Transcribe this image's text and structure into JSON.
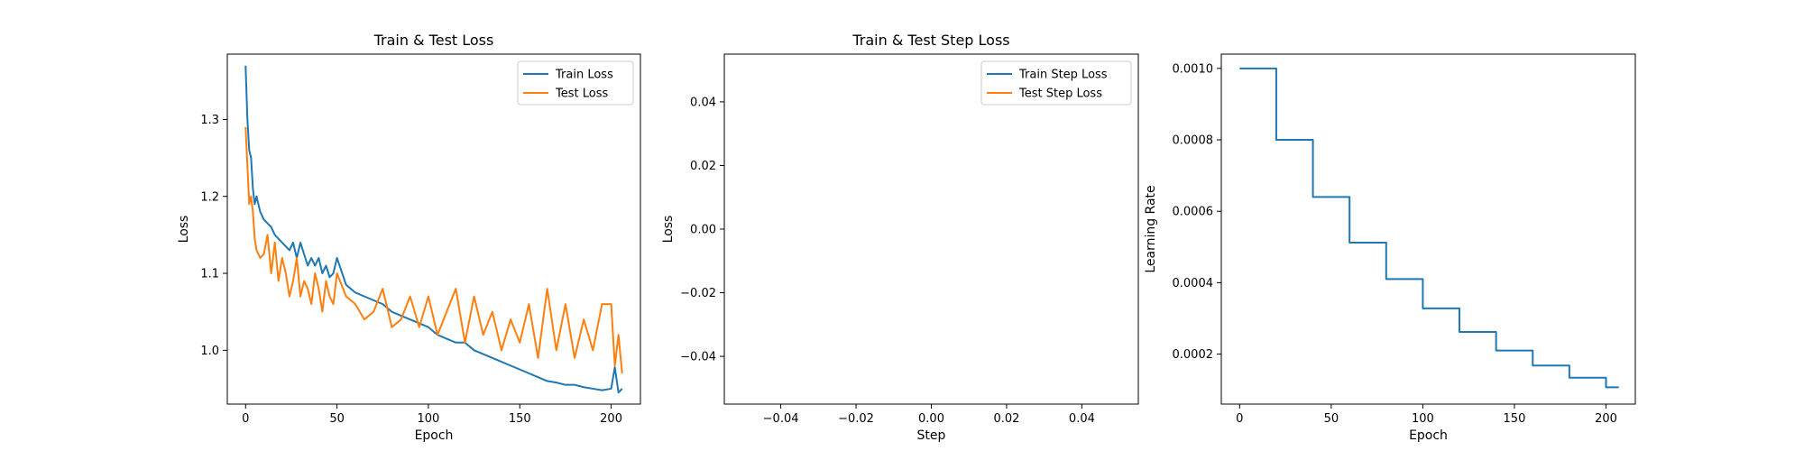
{
  "chart_data": [
    {
      "type": "line",
      "title": "Train & Test Loss",
      "xlabel": "Epoch",
      "ylabel": "Loss",
      "xlim": [
        -10,
        216
      ],
      "ylim": [
        0.93,
        1.385
      ],
      "xticks": [
        0,
        50,
        100,
        150,
        200
      ],
      "yticks": [
        1.0,
        1.1,
        1.2,
        1.3
      ],
      "ytick_labels": [
        "1.0",
        "1.1",
        "1.2",
        "1.3"
      ],
      "legend_position": "top-right",
      "series": [
        {
          "name": "Train Loss",
          "color": "#1f77b4",
          "x": [
            0,
            1,
            2,
            3,
            4,
            5,
            6,
            8,
            10,
            12,
            14,
            16,
            18,
            20,
            22,
            24,
            26,
            28,
            30,
            32,
            34,
            36,
            38,
            40,
            42,
            44,
            46,
            48,
            50,
            55,
            60,
            65,
            70,
            75,
            80,
            85,
            90,
            95,
            100,
            105,
            110,
            115,
            120,
            125,
            130,
            135,
            140,
            145,
            150,
            155,
            160,
            165,
            170,
            175,
            180,
            185,
            190,
            195,
            200,
            202,
            204,
            206
          ],
          "values": [
            1.37,
            1.3,
            1.26,
            1.25,
            1.21,
            1.19,
            1.2,
            1.18,
            1.17,
            1.165,
            1.16,
            1.15,
            1.145,
            1.14,
            1.135,
            1.13,
            1.14,
            1.12,
            1.14,
            1.125,
            1.11,
            1.12,
            1.11,
            1.12,
            1.1,
            1.11,
            1.095,
            1.1,
            1.12,
            1.085,
            1.075,
            1.07,
            1.065,
            1.06,
            1.05,
            1.045,
            1.04,
            1.035,
            1.03,
            1.02,
            1.015,
            1.01,
            1.01,
            1.0,
            0.995,
            0.99,
            0.985,
            0.98,
            0.975,
            0.97,
            0.965,
            0.96,
            0.958,
            0.955,
            0.955,
            0.952,
            0.95,
            0.948,
            0.95,
            0.978,
            0.945,
            0.95
          ]
        },
        {
          "name": "Test Loss",
          "color": "#ff7f0e",
          "x": [
            0,
            1,
            2,
            3,
            4,
            5,
            6,
            8,
            10,
            12,
            14,
            16,
            18,
            20,
            22,
            24,
            26,
            28,
            30,
            32,
            34,
            36,
            38,
            40,
            42,
            44,
            46,
            48,
            50,
            55,
            60,
            65,
            70,
            75,
            80,
            85,
            90,
            95,
            100,
            105,
            110,
            115,
            120,
            125,
            130,
            135,
            140,
            145,
            150,
            155,
            160,
            165,
            170,
            175,
            180,
            185,
            190,
            195,
            200,
            202,
            204,
            206
          ],
          "values": [
            1.29,
            1.24,
            1.19,
            1.2,
            1.18,
            1.145,
            1.13,
            1.12,
            1.125,
            1.15,
            1.1,
            1.14,
            1.09,
            1.12,
            1.1,
            1.07,
            1.09,
            1.12,
            1.07,
            1.09,
            1.08,
            1.06,
            1.1,
            1.08,
            1.05,
            1.09,
            1.07,
            1.06,
            1.1,
            1.07,
            1.06,
            1.04,
            1.05,
            1.08,
            1.03,
            1.04,
            1.07,
            1.03,
            1.07,
            1.02,
            1.05,
            1.08,
            1.01,
            1.07,
            1.02,
            1.05,
            1.0,
            1.04,
            1.01,
            1.06,
            0.99,
            1.08,
            1.0,
            1.06,
            0.99,
            1.04,
            1.0,
            1.06,
            1.06,
            0.98,
            1.02,
            0.97
          ]
        }
      ]
    },
    {
      "type": "line",
      "title": "Train & Test Step Loss",
      "xlabel": "Step",
      "ylabel": "Loss",
      "xlim": [
        -0.055,
        0.055
      ],
      "ylim": [
        -0.055,
        0.055
      ],
      "xticks": [
        -0.04,
        -0.02,
        0.0,
        0.02,
        0.04
      ],
      "xtick_labels": [
        "−0.04",
        "−0.02",
        "0.00",
        "0.02",
        "0.04"
      ],
      "yticks": [
        -0.04,
        -0.02,
        0.0,
        0.02,
        0.04
      ],
      "ytick_labels": [
        "−0.04",
        "−0.02",
        "0.00",
        "0.02",
        "0.04"
      ],
      "legend_position": "top-right",
      "series": [
        {
          "name": "Train Step Loss",
          "color": "#1f77b4",
          "x": [],
          "values": []
        },
        {
          "name": "Test Step Loss",
          "color": "#ff7f0e",
          "x": [],
          "values": []
        }
      ]
    },
    {
      "type": "line",
      "title": "",
      "xlabel": "Epoch",
      "ylabel": "Learning Rate",
      "xlim": [
        -10,
        216
      ],
      "ylim": [
        6e-05,
        0.00104
      ],
      "xticks": [
        0,
        50,
        100,
        150,
        200
      ],
      "yticks": [
        0.0002,
        0.0004,
        0.0006,
        0.0008,
        0.001
      ],
      "ytick_labels": [
        "0.0002",
        "0.0004",
        "0.0006",
        "0.0008",
        "0.0010"
      ],
      "series": [
        {
          "name": "",
          "color": "#1f77b4",
          "step": true,
          "x": [
            0,
            20,
            40,
            60,
            80,
            100,
            120,
            140,
            160,
            180,
            200,
            207
          ],
          "values": [
            0.001,
            0.0008,
            0.00064,
            0.000512,
            0.00041,
            0.000328,
            0.000262,
            0.00021,
            0.000168,
            0.000134,
            0.000107,
            0.000107
          ]
        }
      ]
    }
  ]
}
